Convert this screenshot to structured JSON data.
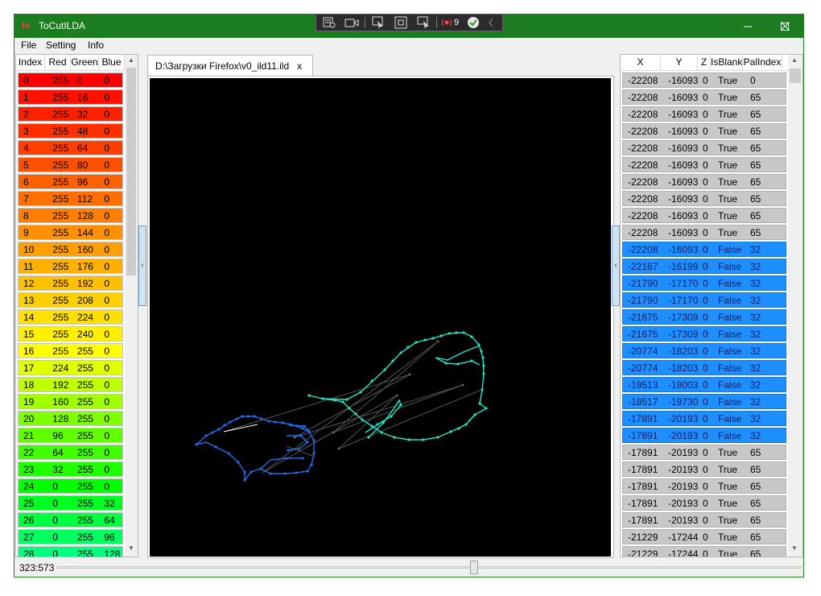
{
  "window": {
    "title": "ToCutILDA",
    "icon_text": "to"
  },
  "capture_bar": {
    "record_count": "9"
  },
  "menu": [
    "File",
    "Setting",
    "Info"
  ],
  "palette": {
    "headers": [
      "Index",
      "Red",
      "Green",
      "Blue"
    ],
    "rows": [
      [
        "0",
        "255",
        "0",
        "0"
      ],
      [
        "1",
        "255",
        "16",
        "0"
      ],
      [
        "2",
        "255",
        "32",
        "0"
      ],
      [
        "3",
        "255",
        "48",
        "0"
      ],
      [
        "4",
        "255",
        "64",
        "0"
      ],
      [
        "5",
        "255",
        "80",
        "0"
      ],
      [
        "6",
        "255",
        "96",
        "0"
      ],
      [
        "7",
        "255",
        "112",
        "0"
      ],
      [
        "8",
        "255",
        "128",
        "0"
      ],
      [
        "9",
        "255",
        "144",
        "0"
      ],
      [
        "10",
        "255",
        "160",
        "0"
      ],
      [
        "11",
        "255",
        "176",
        "0"
      ],
      [
        "12",
        "255",
        "192",
        "0"
      ],
      [
        "13",
        "255",
        "208",
        "0"
      ],
      [
        "14",
        "255",
        "224",
        "0"
      ],
      [
        "15",
        "255",
        "240",
        "0"
      ],
      [
        "16",
        "255",
        "255",
        "0"
      ],
      [
        "17",
        "224",
        "255",
        "0"
      ],
      [
        "18",
        "192",
        "255",
        "0"
      ],
      [
        "19",
        "160",
        "255",
        "0"
      ],
      [
        "20",
        "128",
        "255",
        "0"
      ],
      [
        "21",
        "96",
        "255",
        "0"
      ],
      [
        "22",
        "64",
        "255",
        "0"
      ],
      [
        "23",
        "32",
        "255",
        "0"
      ],
      [
        "24",
        "0",
        "255",
        "0"
      ],
      [
        "25",
        "0",
        "255",
        "32"
      ],
      [
        "26",
        "0",
        "255",
        "64"
      ],
      [
        "27",
        "0",
        "255",
        "96"
      ],
      [
        "28",
        "0",
        "255",
        "128"
      ]
    ]
  },
  "tab": {
    "label": "D:\\Загрузки Firefox\\v0_ild11.ild",
    "close": "x"
  },
  "splitter_glyph": "‹",
  "points": {
    "headers": [
      "X",
      "Y",
      "Z",
      "IsBlank",
      "PalIndex"
    ],
    "rows": [
      [
        "-22208",
        "-16093",
        "0",
        "True",
        "0"
      ],
      [
        "-22208",
        "-16093",
        "0",
        "True",
        "65"
      ],
      [
        "-22208",
        "-16093",
        "0",
        "True",
        "65"
      ],
      [
        "-22208",
        "-16093",
        "0",
        "True",
        "65"
      ],
      [
        "-22208",
        "-16093",
        "0",
        "True",
        "65"
      ],
      [
        "-22208",
        "-16093",
        "0",
        "True",
        "65"
      ],
      [
        "-22208",
        "-16093",
        "0",
        "True",
        "65"
      ],
      [
        "-22208",
        "-16093",
        "0",
        "True",
        "65"
      ],
      [
        "-22208",
        "-16093",
        "0",
        "True",
        "65"
      ],
      [
        "-22208",
        "-16093",
        "0",
        "True",
        "65"
      ],
      [
        "-22208",
        "-16093",
        "0",
        "False",
        "32"
      ],
      [
        "-22167",
        "-16199",
        "0",
        "False",
        "32"
      ],
      [
        "-21790",
        "-17170",
        "0",
        "False",
        "32"
      ],
      [
        "-21790",
        "-17170",
        "0",
        "False",
        "32"
      ],
      [
        "-21675",
        "-17309",
        "0",
        "False",
        "32"
      ],
      [
        "-21675",
        "-17309",
        "0",
        "False",
        "32"
      ],
      [
        "-20774",
        "-18203",
        "0",
        "False",
        "32"
      ],
      [
        "-20774",
        "-18203",
        "0",
        "False",
        "32"
      ],
      [
        "-19513",
        "-19003",
        "0",
        "False",
        "32"
      ],
      [
        "-18517",
        "-19730",
        "0",
        "False",
        "32"
      ],
      [
        "-17891",
        "-20193",
        "0",
        "False",
        "32"
      ],
      [
        "-17891",
        "-20193",
        "0",
        "False",
        "32"
      ],
      [
        "-17891",
        "-20193",
        "0",
        "True",
        "65"
      ],
      [
        "-17891",
        "-20193",
        "0",
        "True",
        "65"
      ],
      [
        "-17891",
        "-20193",
        "0",
        "True",
        "65"
      ],
      [
        "-17891",
        "-20193",
        "0",
        "True",
        "65"
      ],
      [
        "-17891",
        "-20193",
        "0",
        "True",
        "65"
      ],
      [
        "-21229",
        "-17244",
        "0",
        "True",
        "65"
      ],
      [
        "-21229",
        "-17244",
        "0",
        "True",
        "65"
      ]
    ]
  },
  "status": {
    "coords": "323:573"
  },
  "colors": {
    "title_bar": "#1b7d20",
    "blank_row": "#c8c8c8",
    "visible_row": "#1e8fff",
    "cyan_shape": "#22e6c8",
    "blue_shape": "#1e6ff0"
  }
}
